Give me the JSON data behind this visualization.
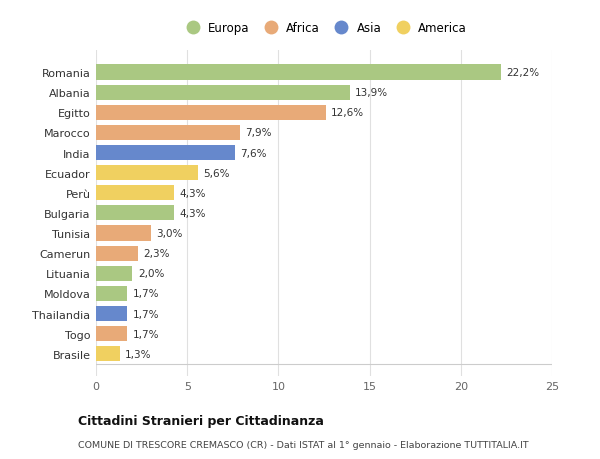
{
  "countries": [
    "Romania",
    "Albania",
    "Egitto",
    "Marocco",
    "India",
    "Ecuador",
    "Perù",
    "Bulgaria",
    "Tunisia",
    "Camerun",
    "Lituania",
    "Moldova",
    "Thailandia",
    "Togo",
    "Brasile"
  ],
  "values": [
    22.2,
    13.9,
    12.6,
    7.9,
    7.6,
    5.6,
    4.3,
    4.3,
    3.0,
    2.3,
    2.0,
    1.7,
    1.7,
    1.7,
    1.3
  ],
  "continents": [
    "Europa",
    "Europa",
    "Africa",
    "Africa",
    "Asia",
    "America",
    "America",
    "Europa",
    "Africa",
    "Africa",
    "Europa",
    "Europa",
    "Asia",
    "Africa",
    "America"
  ],
  "continent_colors": {
    "Europa": "#aac882",
    "Africa": "#e8aa78",
    "Asia": "#6688cc",
    "America": "#f0d060"
  },
  "legend_order": [
    "Europa",
    "Africa",
    "Asia",
    "America"
  ],
  "title_bold": "Cittadini Stranieri per Cittadinanza",
  "subtitle": "COMUNE DI TRESCORE CREMASCO (CR) - Dati ISTAT al 1° gennaio - Elaborazione TUTTITALIA.IT",
  "xlim": [
    0,
    25
  ],
  "xticks": [
    0,
    5,
    10,
    15,
    20,
    25
  ],
  "background_color": "#ffffff",
  "plot_bg_color": "#ffffff",
  "bar_alpha": 1.0,
  "bar_height": 0.75
}
